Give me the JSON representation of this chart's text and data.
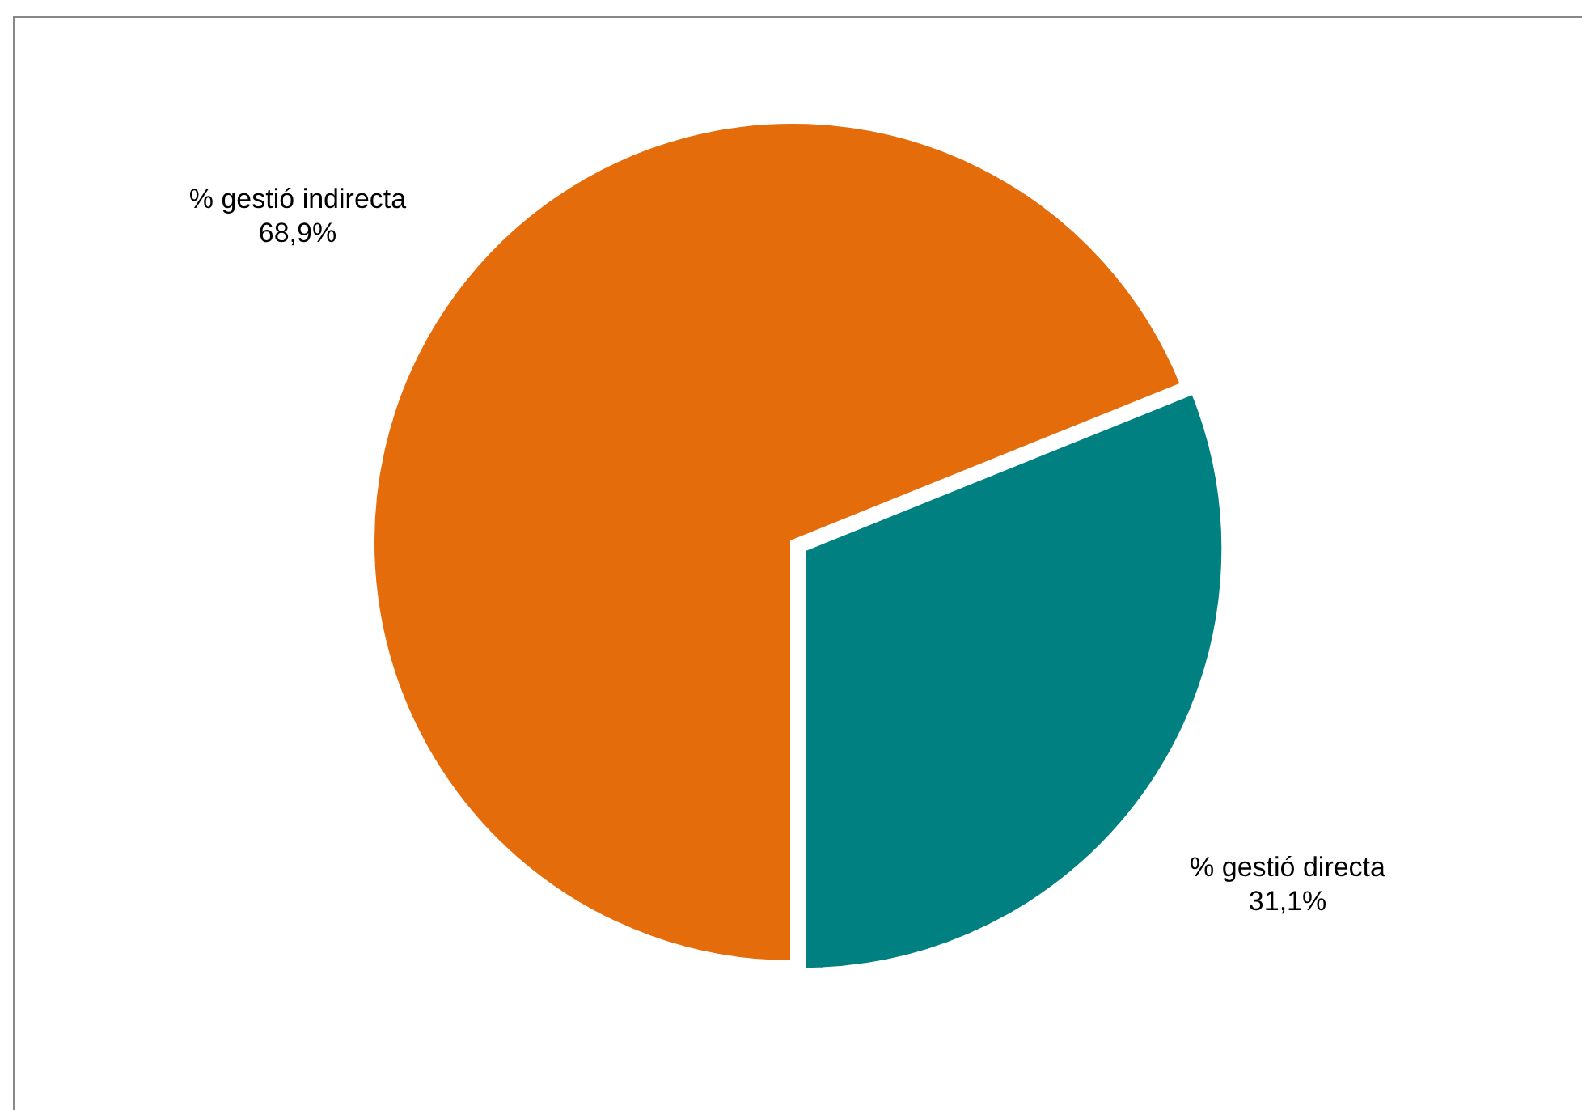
{
  "chart_data": {
    "type": "pie",
    "categories": [
      "% gestió indirecta",
      "% gestió directa"
    ],
    "values": [
      68.9,
      31.1
    ],
    "colors": [
      "#e46c0a",
      "#008080"
    ],
    "value_labels": [
      "68,9%",
      "31,1%"
    ]
  }
}
